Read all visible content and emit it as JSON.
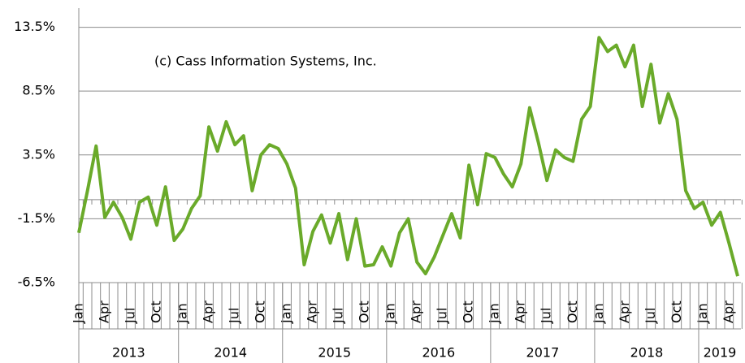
{
  "chart_data": {
    "type": "line",
    "annotation": "(c) Cass Information Systems, Inc.",
    "categories": [
      "Jan",
      null,
      null,
      "Apr",
      null,
      null,
      "Jul",
      null,
      null,
      "Oct",
      null,
      null,
      "Jan",
      null,
      null,
      "Apr",
      null,
      null,
      "Jul",
      null,
      null,
      "Oct",
      null,
      null,
      "Jan",
      null,
      null,
      "Apr",
      null,
      null,
      "Jul",
      null,
      null,
      "Oct",
      null,
      null,
      "Jan",
      null,
      null,
      "Apr",
      null,
      null,
      "Jul",
      null,
      null,
      "Oct",
      null,
      null,
      "Jan",
      null,
      null,
      "Apr",
      null,
      null,
      "Jul",
      null,
      null,
      "Oct",
      null,
      null,
      "Jan",
      null,
      null,
      "Apr",
      null,
      null,
      "Jul",
      null,
      null,
      "Oct",
      null,
      null,
      "Jan",
      null,
      null,
      "Apr",
      null
    ],
    "years": [
      "2013",
      "2014",
      "2015",
      "2016",
      "2017",
      "2018",
      "2019"
    ],
    "values": [
      -2.6,
      0.7,
      4.2,
      -1.4,
      -0.2,
      -1.4,
      -3.1,
      -0.2,
      0.2,
      -2.0,
      1.0,
      -3.2,
      -2.3,
      -0.7,
      0.3,
      5.7,
      3.8,
      6.1,
      4.3,
      5.0,
      0.7,
      3.5,
      4.3,
      4.0,
      2.8,
      0.9,
      -5.1,
      -2.5,
      -1.2,
      -3.4,
      -1.1,
      -4.7,
      -1.5,
      -5.2,
      -5.1,
      -3.7,
      -5.2,
      -2.6,
      -1.5,
      -4.9,
      -5.8,
      -4.5,
      -2.8,
      -1.1,
      -3.0,
      2.7,
      -0.4,
      3.6,
      3.3,
      2.0,
      1.0,
      2.8,
      7.2,
      4.5,
      1.5,
      3.9,
      3.3,
      3.0,
      6.3,
      7.3,
      12.7,
      11.6,
      12.1,
      10.4,
      12.1,
      7.3,
      10.6,
      6.0,
      8.3,
      6.3,
      0.7,
      -0.7,
      -0.2,
      -2.0,
      -1.0,
      -3.4,
      -6.0
    ],
    "color": "#6aaa2a",
    "ylim": [
      -6.5,
      15
    ],
    "yticks": [
      {
        "value": -6.5,
        "label": "-6.5%"
      },
      {
        "value": -1.5,
        "label": "-1.5%"
      },
      {
        "value": 3.5,
        "label": "3.5%"
      },
      {
        "value": 8.5,
        "label": "8.5%"
      },
      {
        "value": 13.5,
        "label": "13.5%"
      }
    ],
    "grid": true,
    "zero_line": true
  }
}
